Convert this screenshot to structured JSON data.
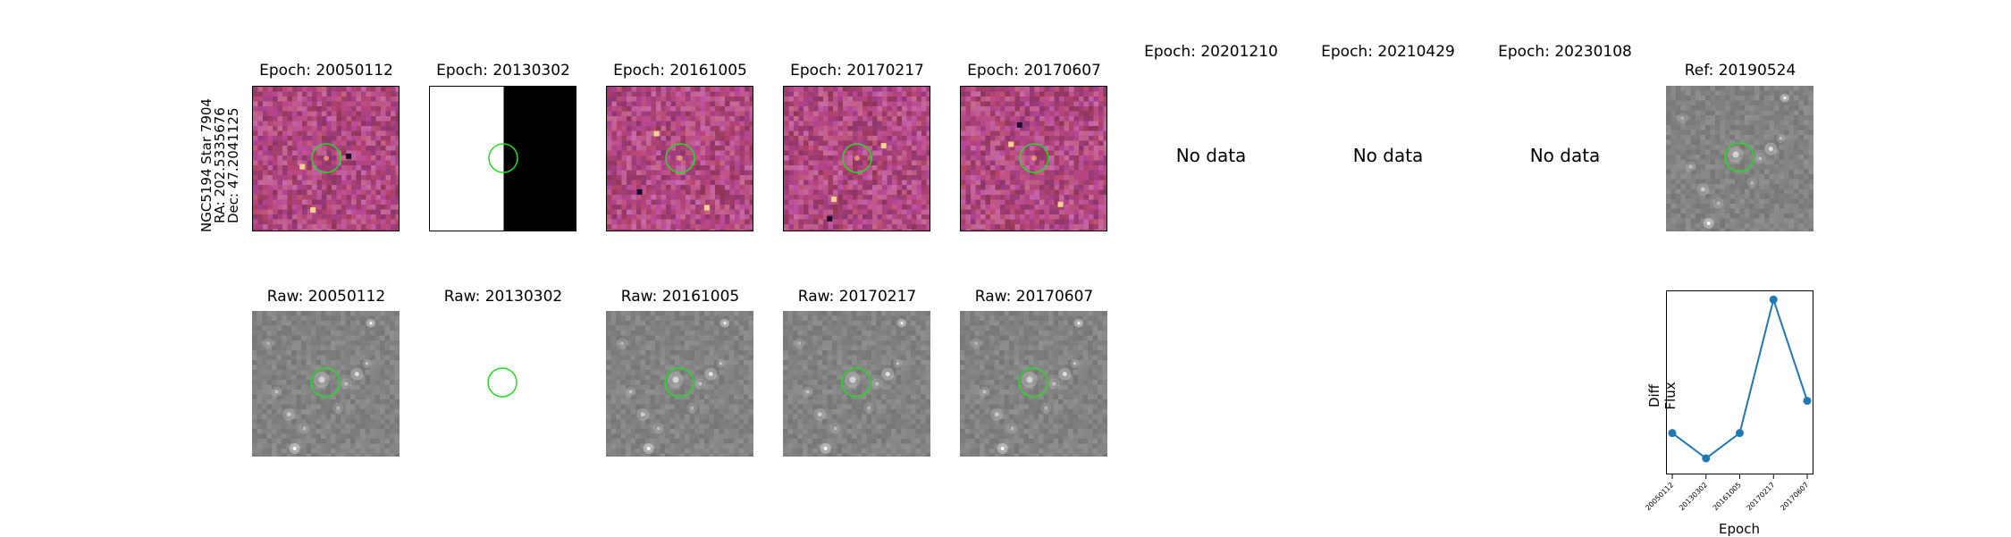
{
  "star": {
    "name": "NGC5194 Star 7904",
    "ra": "RA: 202.5335676",
    "dec": "Dec: 47.2041125"
  },
  "top_row": {
    "titles": [
      "Epoch: 20050112",
      "Epoch: 20130302",
      "Epoch: 20161005",
      "Epoch: 20170217",
      "Epoch: 20170607",
      "Epoch: 20201210",
      "Epoch: 20210429",
      "Epoch: 20230108",
      "Ref: 20190524"
    ],
    "no_data_text": "No data"
  },
  "bottom_row": {
    "titles": [
      "Raw: 20050112",
      "Raw: 20130302",
      "Raw: 20161005",
      "Raw: 20170217",
      "Raw: 20170607"
    ]
  },
  "colors": {
    "circle": "#22dd22",
    "line": "#1f77b4",
    "diff_base": "#9e3f7a",
    "raw_base": "#808080"
  },
  "chart_data": {
    "type": "line",
    "title": "",
    "xlabel": "Epoch",
    "ylabel": "Diff Flux",
    "categories": [
      "20050112",
      "20130302",
      "20161005",
      "20170217",
      "20170607"
    ],
    "values": [
      0.18,
      0.07,
      0.18,
      0.76,
      0.32
    ],
    "ylim": [
      0,
      0.8
    ],
    "yticks_visible": false,
    "marker": "circle"
  }
}
